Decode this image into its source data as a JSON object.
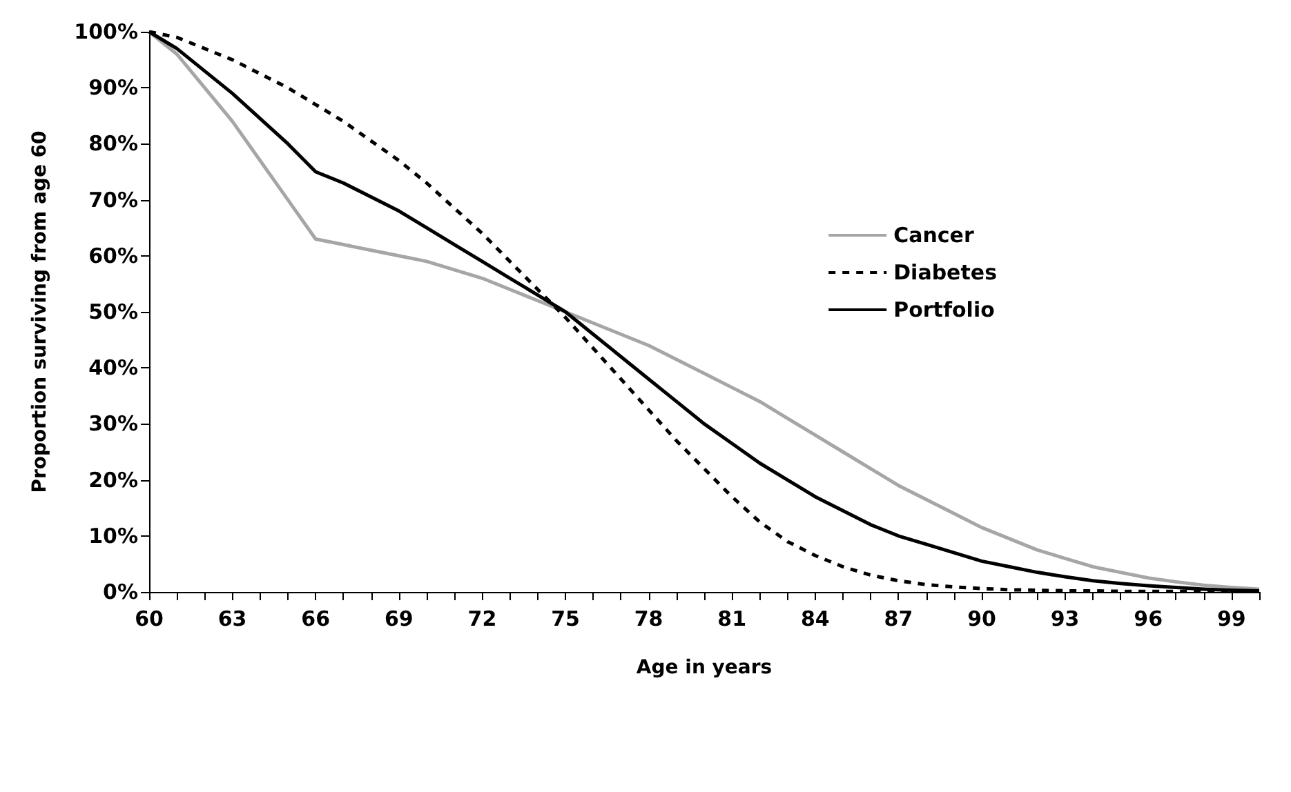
{
  "chart_data": {
    "type": "line",
    "xlabel": "Age in years",
    "ylabel": "Proportion surviving from age 60",
    "x": [
      60,
      61,
      62,
      63,
      64,
      65,
      66,
      67,
      68,
      69,
      70,
      71,
      72,
      73,
      74,
      75,
      76,
      77,
      78,
      79,
      80,
      81,
      82,
      83,
      84,
      85,
      86,
      87,
      88,
      89,
      90,
      91,
      92,
      93,
      94,
      95,
      96,
      97,
      98,
      99,
      100
    ],
    "series": [
      {
        "name": "Cancer",
        "color": "#a6a6a6",
        "line_style": "solid",
        "values": [
          100,
          96,
          90,
          84,
          77,
          70,
          63,
          62,
          61,
          60,
          59,
          57.5,
          56,
          54,
          52,
          50,
          48,
          46,
          44,
          41.5,
          39,
          36.5,
          34,
          31,
          28,
          25,
          22,
          19,
          16.5,
          14,
          11.5,
          9.5,
          7.5,
          6,
          4.5,
          3.5,
          2.5,
          1.8,
          1.2,
          0.8,
          0.5
        ]
      },
      {
        "name": "Diabetes",
        "color": "#000000",
        "line_style": "dashed",
        "values": [
          100,
          99,
          97,
          95,
          92.5,
          90,
          87,
          84,
          80.5,
          77,
          73,
          68.5,
          64,
          59,
          54,
          49,
          43.5,
          38,
          32.5,
          27,
          22,
          17,
          12.5,
          9,
          6.5,
          4.5,
          3,
          2,
          1.3,
          0.9,
          0.6,
          0.4,
          0.3,
          0.2,
          0.2,
          0.1,
          0.1,
          0.1,
          0.1,
          0.1,
          0.1
        ]
      },
      {
        "name": "Portfolio",
        "color": "#000000",
        "line_style": "solid",
        "values": [
          100,
          97,
          93,
          89,
          84.5,
          80,
          75,
          73,
          70.5,
          68,
          65,
          62,
          59,
          56,
          53,
          50,
          46,
          42,
          38,
          34,
          30,
          26.5,
          23,
          20,
          17,
          14.5,
          12,
          10,
          8.5,
          7,
          5.5,
          4.5,
          3.5,
          2.7,
          2,
          1.5,
          1.1,
          0.8,
          0.5,
          0.3,
          0.2
        ]
      }
    ],
    "xlim": [
      60,
      100
    ],
    "xticks": [
      60,
      {
        "value": 61,
        "label": null
      },
      {
        "value": 62,
        "label": null
      },
      63,
      {
        "value": 64,
        "label": null
      },
      {
        "value": 65,
        "label": null
      },
      66,
      {
        "value": 67,
        "label": null
      },
      {
        "value": 68,
        "label": null
      },
      69,
      {
        "value": 70,
        "label": null
      },
      {
        "value": 71,
        "label": null
      },
      72,
      {
        "value": 73,
        "label": null
      },
      {
        "value": 74,
        "label": null
      },
      75,
      {
        "value": 76,
        "label": null
      },
      {
        "value": 77,
        "label": null
      },
      78,
      {
        "value": 79,
        "label": null
      },
      {
        "value": 80,
        "label": null
      },
      81,
      {
        "value": 82,
        "label": null
      },
      {
        "value": 83,
        "label": null
      },
      84,
      {
        "value": 85,
        "label": null
      },
      {
        "value": 86,
        "label": null
      },
      87,
      {
        "value": 88,
        "label": null
      },
      {
        "value": 89,
        "label": null
      },
      90,
      {
        "value": 91,
        "label": null
      },
      {
        "value": 92,
        "label": null
      },
      93,
      {
        "value": 94,
        "label": null
      },
      {
        "value": 95,
        "label": null
      },
      96,
      {
        "value": 97,
        "label": null
      },
      {
        "value": 98,
        "label": null
      },
      99,
      {
        "value": 100,
        "label": null
      }
    ],
    "ylim": [
      0,
      100
    ],
    "yticks": [
      {
        "value": 0,
        "label": "0%"
      },
      {
        "value": 10,
        "label": "10%"
      },
      {
        "value": 20,
        "label": "20%"
      },
      {
        "value": 30,
        "label": "30%"
      },
      {
        "value": 40,
        "label": "40%"
      },
      {
        "value": 50,
        "label": "50%"
      },
      {
        "value": 60,
        "label": "60%"
      },
      {
        "value": 70,
        "label": "70%"
      },
      {
        "value": 80,
        "label": "80%"
      },
      {
        "value": 90,
        "label": "90%"
      },
      {
        "value": 100,
        "label": "100%"
      }
    ],
    "grid": false,
    "legend": "right",
    "marker": "none"
  }
}
